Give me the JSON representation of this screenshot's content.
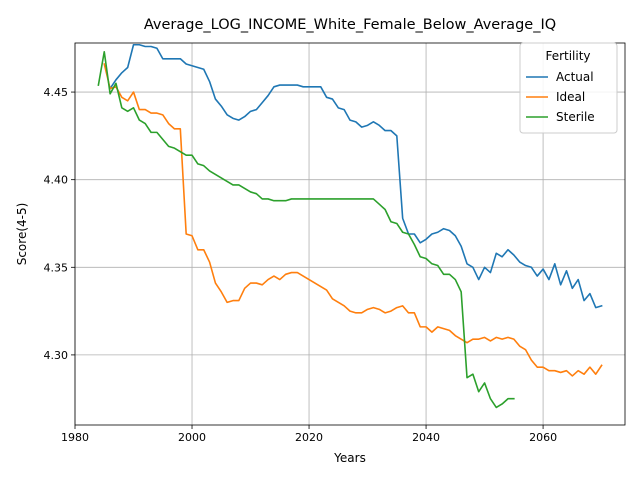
{
  "chart_data": {
    "type": "line",
    "title": "Average_LOG_INCOME_White_Female_Below_Average_IQ",
    "xlabel": "Years",
    "ylabel": "Score(4-5)",
    "xlim": [
      1980,
      2074
    ],
    "ylim": [
      4.26,
      4.478
    ],
    "xticks": [
      1980,
      2000,
      2020,
      2040,
      2060
    ],
    "yticks": [
      4.3,
      4.35,
      4.4,
      4.45
    ],
    "grid": true,
    "legend": {
      "title": "Fertility",
      "position": "top-right"
    },
    "series": [
      {
        "name": "Actual",
        "color": "#1f77b4",
        "x": [
          1986,
          1987,
          1988,
          1989,
          1990,
          1991,
          1992,
          1993,
          1994,
          1995,
          1996,
          1997,
          1998,
          1999,
          2000,
          2001,
          2002,
          2003,
          2004,
          2005,
          2006,
          2007,
          2008,
          2009,
          2010,
          2011,
          2012,
          2013,
          2014,
          2015,
          2016,
          2017,
          2018,
          2019,
          2020,
          2021,
          2022,
          2023,
          2024,
          2025,
          2026,
          2027,
          2028,
          2029,
          2030,
          2031,
          2032,
          2033,
          2034,
          2035,
          2036,
          2037,
          2038,
          2039,
          2040,
          2041,
          2042,
          2043,
          2044,
          2045,
          2046,
          2047,
          2048,
          2049,
          2050,
          2051,
          2052,
          2053,
          2054,
          2055,
          2056,
          2057,
          2058,
          2059,
          2060,
          2061,
          2062,
          2063,
          2064,
          2065,
          2066,
          2067,
          2068,
          2069,
          2070
        ],
        "y": [
          4.452,
          4.457,
          4.461,
          4.464,
          4.477,
          4.477,
          4.476,
          4.476,
          4.475,
          4.469,
          4.469,
          4.469,
          4.469,
          4.466,
          4.465,
          4.464,
          4.463,
          4.456,
          4.446,
          4.442,
          4.437,
          4.435,
          4.434,
          4.436,
          4.439,
          4.44,
          4.444,
          4.448,
          4.453,
          4.454,
          4.454,
          4.454,
          4.454,
          4.453,
          4.453,
          4.453,
          4.453,
          4.447,
          4.446,
          4.441,
          4.44,
          4.434,
          4.433,
          4.43,
          4.431,
          4.433,
          4.431,
          4.428,
          4.428,
          4.425,
          4.378,
          4.369,
          4.369,
          4.364,
          4.366,
          4.369,
          4.37,
          4.372,
          4.371,
          4.368,
          4.362,
          4.352,
          4.35,
          4.343,
          4.35,
          4.347,
          4.358,
          4.356,
          4.36,
          4.357,
          4.353,
          4.351,
          4.35,
          4.345,
          4.349,
          4.343,
          4.352,
          4.34,
          4.348,
          4.338,
          4.343,
          4.331,
          4.335,
          4.327,
          4.328
        ]
      },
      {
        "name": "Ideal",
        "color": "#ff7f0e",
        "x": [
          1985,
          1986,
          1987,
          1988,
          1989,
          1990,
          1991,
          1992,
          1993,
          1994,
          1995,
          1996,
          1997,
          1998,
          1999,
          2000,
          2001,
          2002,
          2003,
          2004,
          2005,
          2006,
          2007,
          2008,
          2009,
          2010,
          2011,
          2012,
          2013,
          2014,
          2015,
          2016,
          2017,
          2018,
          2019,
          2020,
          2021,
          2022,
          2023,
          2024,
          2025,
          2026,
          2027,
          2028,
          2029,
          2030,
          2031,
          2032,
          2033,
          2034,
          2035,
          2036,
          2037,
          2038,
          2039,
          2040,
          2041,
          2042,
          2043,
          2044,
          2045,
          2046,
          2047,
          2048,
          2049,
          2050,
          2051,
          2052,
          2053,
          2054,
          2055,
          2056,
          2057,
          2058,
          2059,
          2060,
          2061,
          2062,
          2063,
          2064,
          2065,
          2066,
          2067,
          2068,
          2069,
          2070
        ],
        "y": [
          4.466,
          4.452,
          4.453,
          4.447,
          4.445,
          4.45,
          4.44,
          4.44,
          4.438,
          4.438,
          4.437,
          4.432,
          4.429,
          4.429,
          4.369,
          4.368,
          4.36,
          4.36,
          4.353,
          4.341,
          4.336,
          4.33,
          4.331,
          4.331,
          4.338,
          4.341,
          4.341,
          4.34,
          4.343,
          4.345,
          4.343,
          4.346,
          4.347,
          4.347,
          4.345,
          4.343,
          4.341,
          4.339,
          4.337,
          4.332,
          4.33,
          4.328,
          4.325,
          4.324,
          4.324,
          4.326,
          4.327,
          4.326,
          4.324,
          4.325,
          4.327,
          4.328,
          4.324,
          4.324,
          4.316,
          4.316,
          4.313,
          4.316,
          4.315,
          4.314,
          4.311,
          4.309,
          4.307,
          4.309,
          4.309,
          4.31,
          4.308,
          4.31,
          4.309,
          4.31,
          4.309,
          4.305,
          4.303,
          4.297,
          4.293,
          4.293,
          4.291,
          4.291,
          4.29,
          4.291,
          4.288,
          4.291,
          4.289,
          4.293,
          4.289,
          4.294
        ]
      },
      {
        "name": "Sterile",
        "color": "#2ca02c",
        "x": [
          1984,
          1985,
          1986,
          1987,
          1988,
          1989,
          1990,
          1991,
          1992,
          1993,
          1994,
          1995,
          1996,
          1997,
          1998,
          1999,
          2000,
          2001,
          2002,
          2003,
          2004,
          2005,
          2006,
          2007,
          2008,
          2009,
          2010,
          2011,
          2012,
          2013,
          2014,
          2015,
          2016,
          2017,
          2018,
          2019,
          2020,
          2021,
          2022,
          2023,
          2024,
          2025,
          2026,
          2027,
          2028,
          2029,
          2030,
          2031,
          2032,
          2033,
          2034,
          2035,
          2036,
          2037,
          2038,
          2039,
          2040,
          2041,
          2042,
          2043,
          2044,
          2045,
          2046,
          2047,
          2048,
          2049,
          2050,
          2051,
          2052,
          2053,
          2054,
          2055
        ],
        "y": [
          4.454,
          4.473,
          4.449,
          4.455,
          4.441,
          4.439,
          4.441,
          4.434,
          4.432,
          4.427,
          4.427,
          4.423,
          4.419,
          4.418,
          4.416,
          4.414,
          4.414,
          4.409,
          4.408,
          4.405,
          4.403,
          4.401,
          4.399,
          4.397,
          4.397,
          4.395,
          4.393,
          4.392,
          4.389,
          4.389,
          4.388,
          4.388,
          4.388,
          4.389,
          4.389,
          4.389,
          4.389,
          4.389,
          4.389,
          4.389,
          4.389,
          4.389,
          4.389,
          4.389,
          4.389,
          4.389,
          4.389,
          4.389,
          4.386,
          4.383,
          4.376,
          4.375,
          4.37,
          4.369,
          4.363,
          4.356,
          4.355,
          4.352,
          4.351,
          4.346,
          4.346,
          4.343,
          4.336,
          4.287,
          4.289,
          4.279,
          4.284,
          4.275,
          4.27,
          4.272,
          4.275,
          4.275
        ]
      }
    ]
  }
}
